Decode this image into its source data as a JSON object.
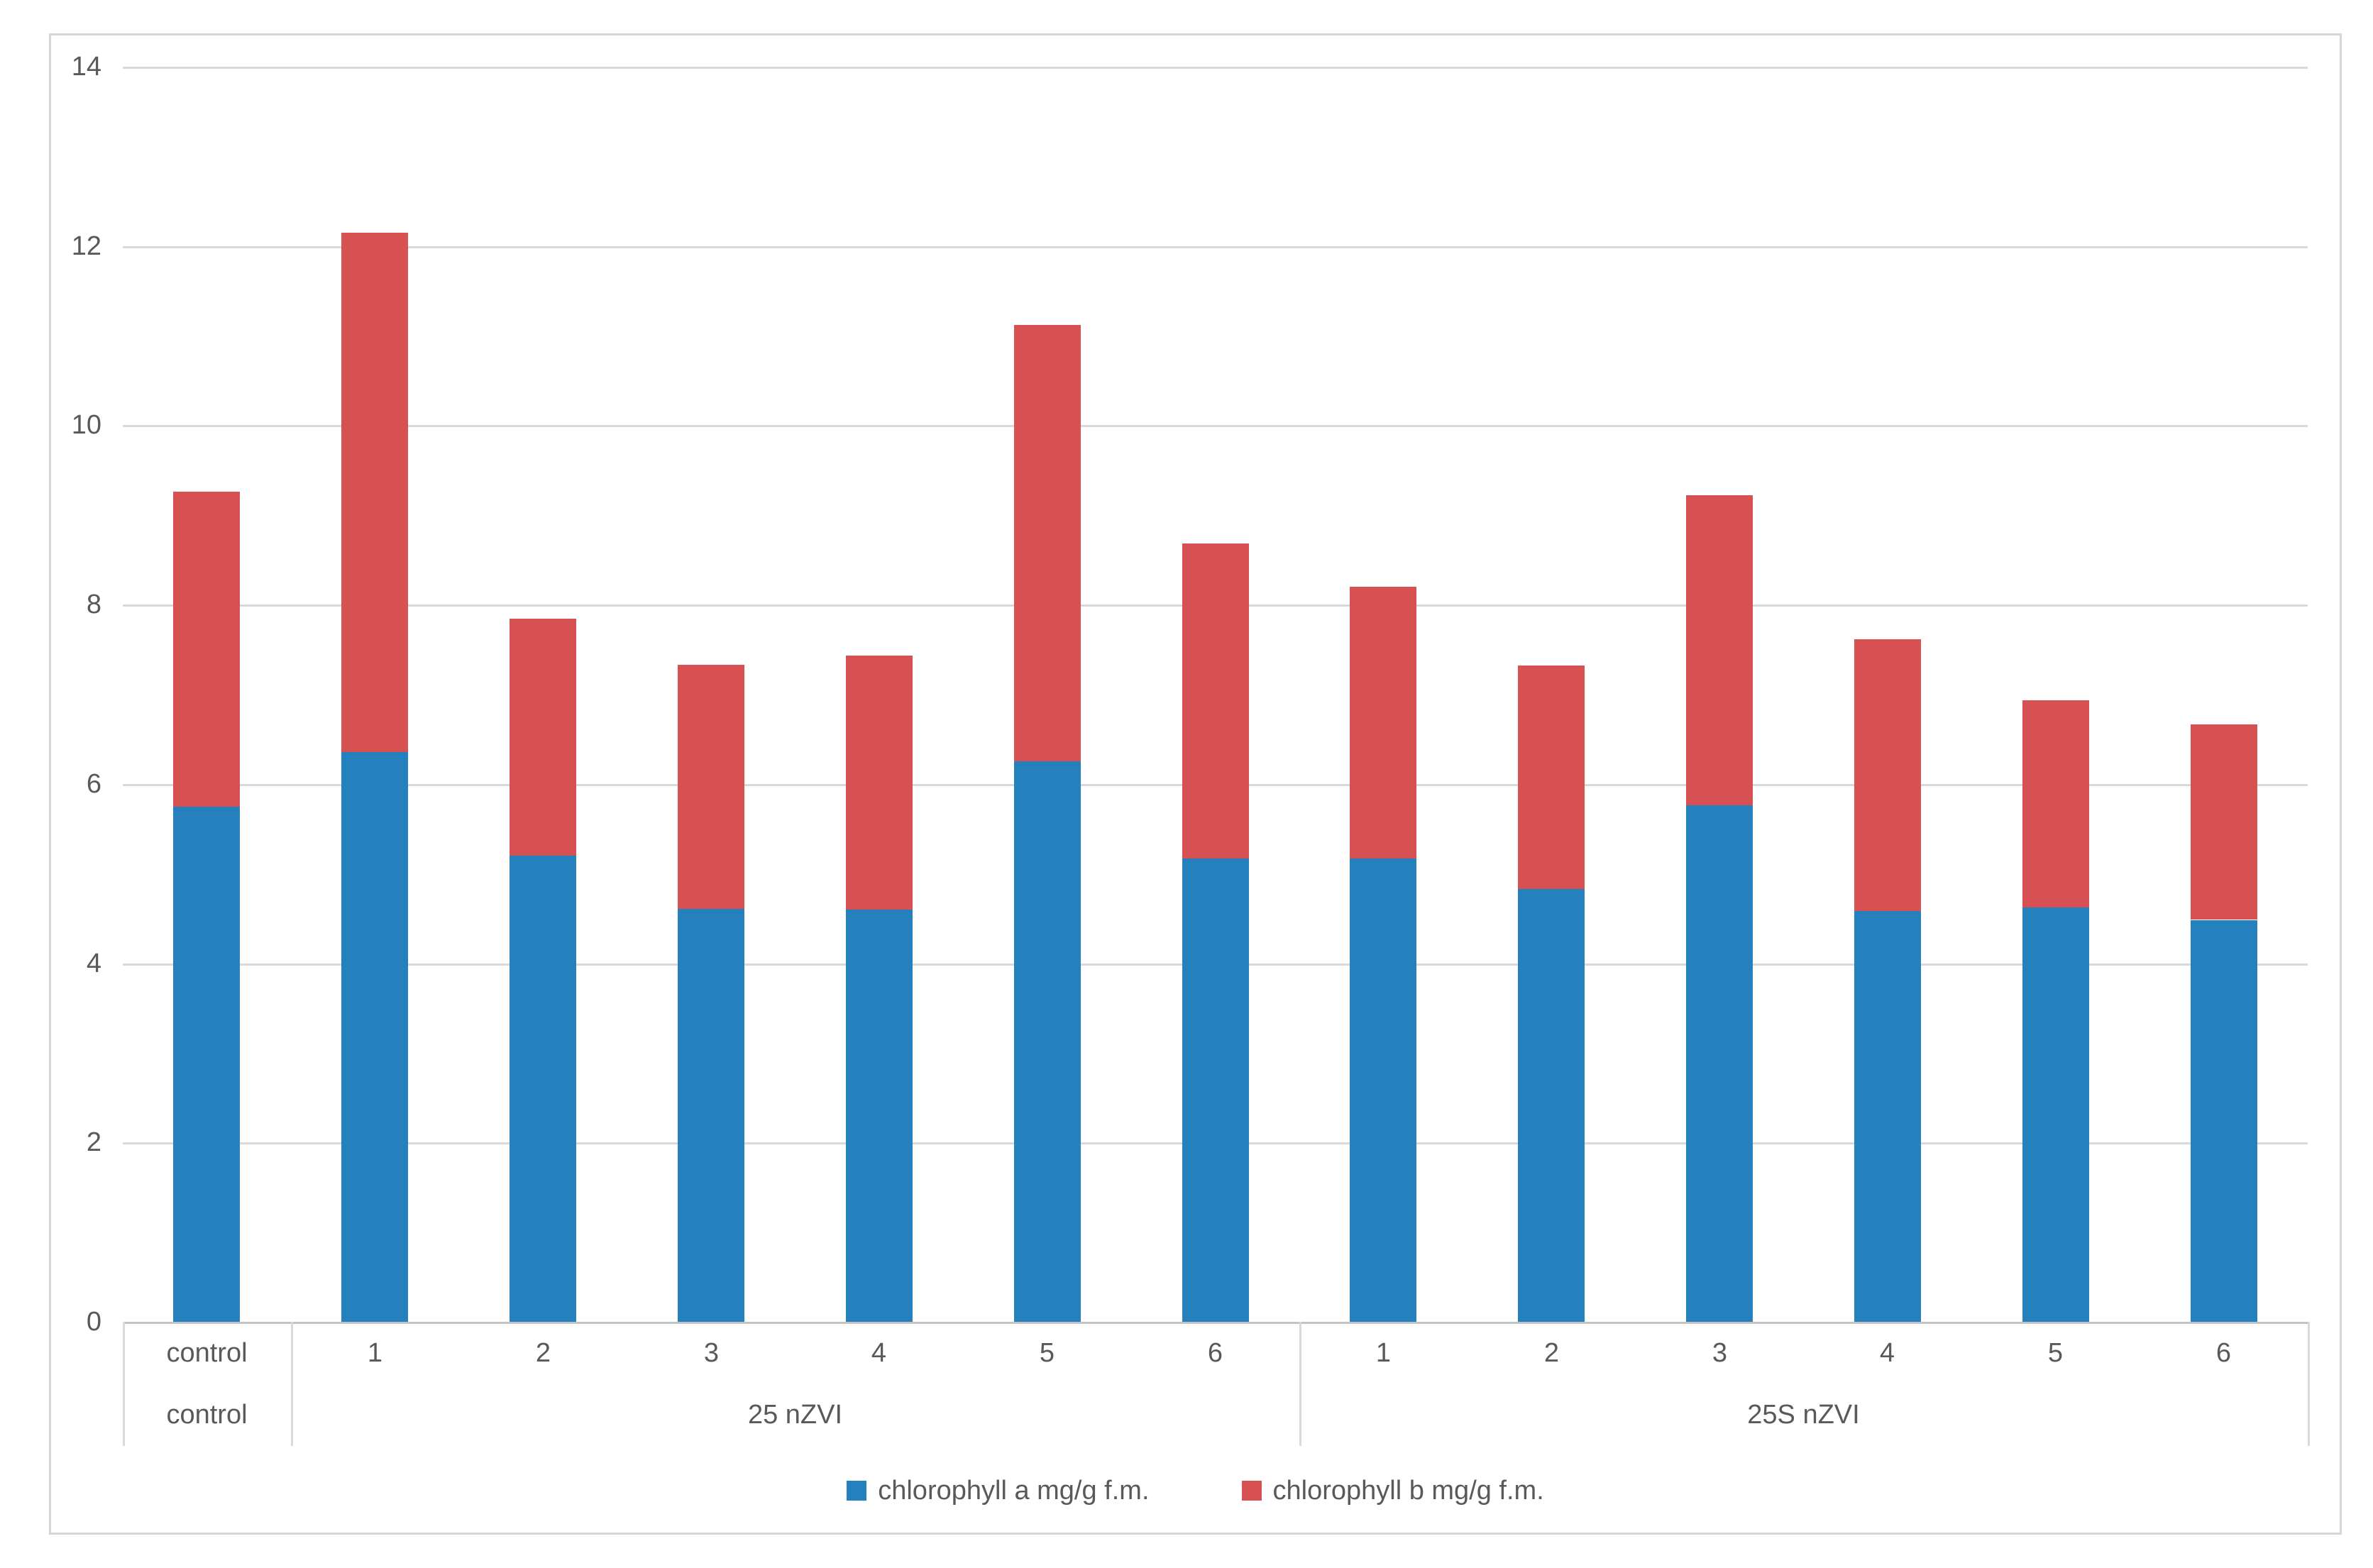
{
  "chart_data": {
    "type": "bar",
    "stacked": true,
    "title": "",
    "xlabel": "",
    "ylabel": "",
    "ylim": [
      0,
      14
    ],
    "ytick_step": 2,
    "yticks": [
      "0",
      "2",
      "4",
      "6",
      "8",
      "10",
      "12",
      "14"
    ],
    "grid": true,
    "legend_position": "bottom",
    "categories": [
      "control",
      "1",
      "2",
      "3",
      "4",
      "5",
      "6",
      "1",
      "2",
      "3",
      "4",
      "5",
      "6"
    ],
    "groups": [
      {
        "label": "control",
        "span": 1
      },
      {
        "label": "25 nZVI",
        "span": 6
      },
      {
        "label": "25S nZVI",
        "span": 6
      }
    ],
    "series": [
      {
        "name": "chlorophyll a mg/g f.m.",
        "color": "#2581BE",
        "values": [
          5.75,
          6.36,
          5.2,
          4.61,
          4.6,
          6.25,
          5.17,
          5.17,
          4.83,
          5.76,
          4.58,
          4.62,
          4.48
        ]
      },
      {
        "name": "chlorophyll b mg/g f.m.",
        "color": "#D85152",
        "values": [
          3.51,
          5.79,
          2.64,
          2.72,
          2.83,
          4.87,
          3.51,
          3.03,
          2.49,
          3.46,
          3.03,
          2.31,
          2.18
        ]
      }
    ]
  },
  "colors": {
    "gridline": "#d9d9d9",
    "axis_line": "#c3c3c3",
    "table_line": "#d9d9d9",
    "tick_text": "#595959",
    "frame_border": "#d6d6d6",
    "background": "#ffffff"
  }
}
